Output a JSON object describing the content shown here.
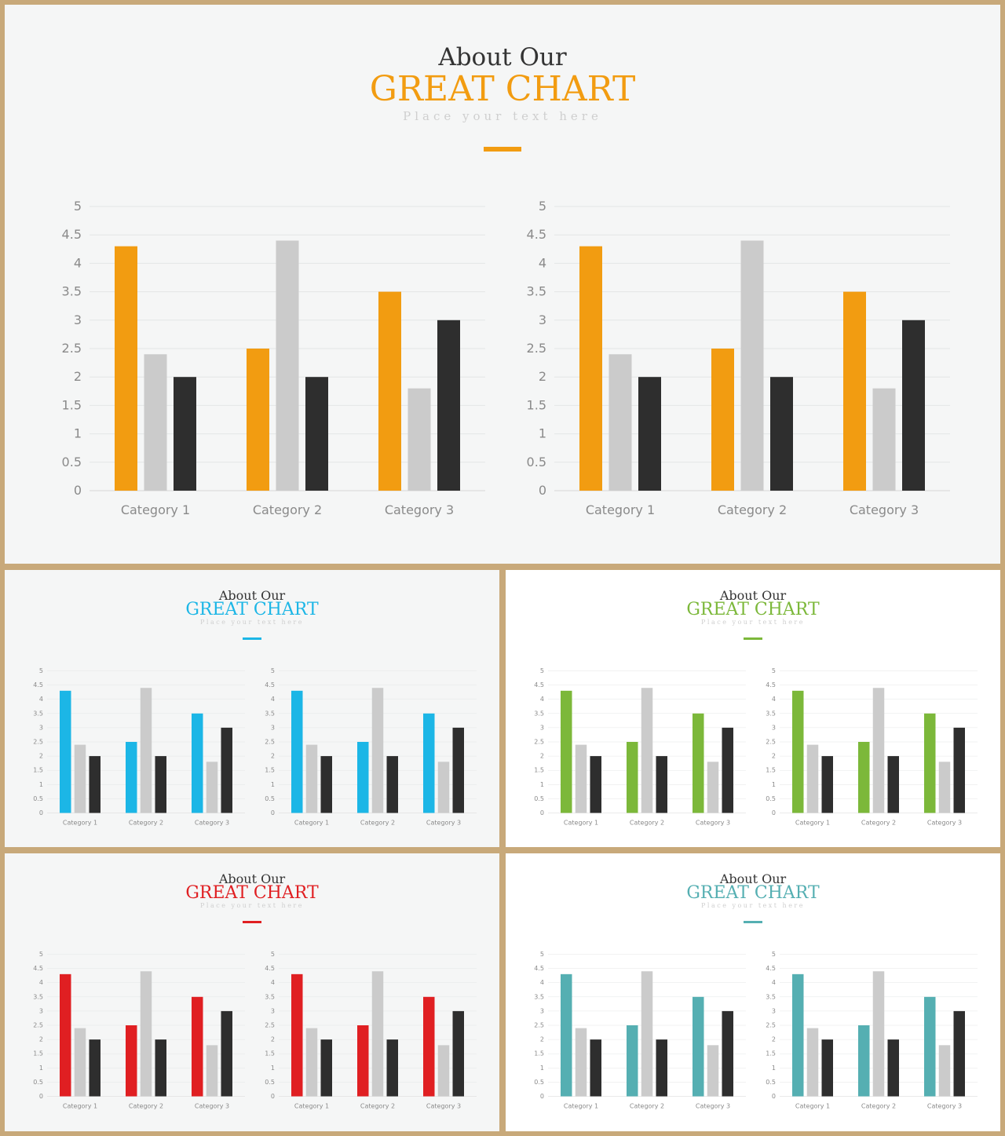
{
  "slides": [
    {
      "id": "s0",
      "pre_title": "About Our",
      "main_title": "GREAT CHART",
      "subtitle": "Place your text here",
      "accent": "#f29c11",
      "background": "#f5f6f6"
    },
    {
      "id": "s1",
      "pre_title": "About Our",
      "main_title": "GREAT CHART",
      "subtitle": "Place your text here",
      "accent": "#1cb6e6",
      "background": "#f5f6f6"
    },
    {
      "id": "s2",
      "pre_title": "About Our",
      "main_title": "GREAT CHART",
      "subtitle": "Place your text here",
      "accent": "#7cb83a",
      "background": "#ffffff"
    },
    {
      "id": "s3",
      "pre_title": "About Our",
      "main_title": "GREAT CHART",
      "subtitle": "Place your text here",
      "accent": "#e01f22",
      "background": "#f5f6f6"
    },
    {
      "id": "s4",
      "pre_title": "About Our",
      "main_title": "GREAT CHART",
      "subtitle": "Place your text here",
      "accent": "#55afb2",
      "background": "#ffffff"
    }
  ],
  "chart_data": {
    "type": "bar",
    "categories": [
      "Category 1",
      "Category 2",
      "Category 3"
    ],
    "series": [
      {
        "values": [
          4.3,
          2.5,
          3.5
        ],
        "color": "accent"
      },
      {
        "values": [
          2.4,
          4.4,
          1.8
        ],
        "color": "#cbcbcb"
      },
      {
        "values": [
          2,
          2,
          3
        ],
        "color": "#2e2e2e"
      }
    ],
    "ylim": [
      0,
      5
    ],
    "yticks": [
      "0",
      "0.5",
      "1",
      "1.5",
      "2",
      "2.5",
      "3",
      "3.5",
      "4",
      "4.5",
      "5"
    ],
    "grid": true,
    "legend": "none",
    "charts_per_slide": 2
  }
}
